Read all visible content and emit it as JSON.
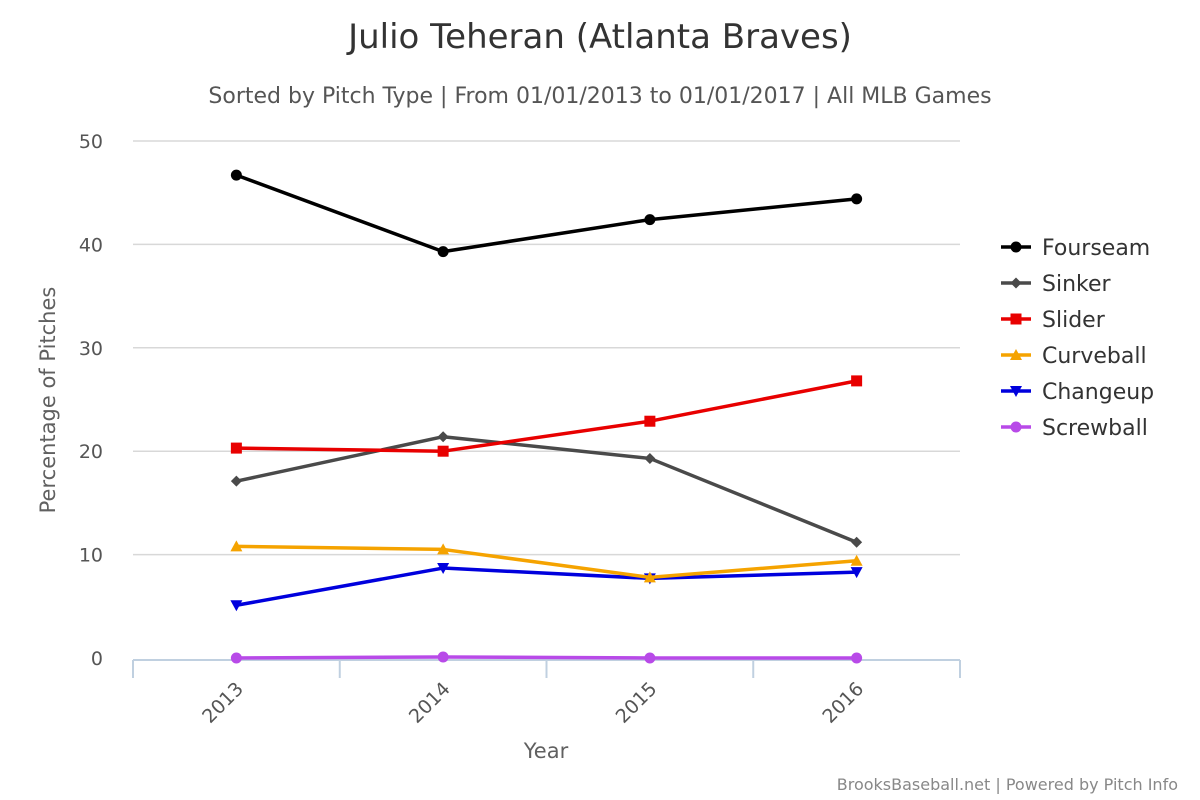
{
  "chart_data": {
    "type": "line",
    "title": "Julio Teheran (Atlanta Braves)",
    "subtitle": "Sorted by Pitch Type | From 01/01/2013 to 01/01/2017 | All MLB Games",
    "xlabel": "Year",
    "ylabel": "Percentage of Pitches",
    "categories": [
      "2013",
      "2014",
      "2015",
      "2016"
    ],
    "ylim": [
      0,
      50
    ],
    "yticks": [
      "0",
      "10",
      "20",
      "30",
      "40",
      "50"
    ],
    "grid": true,
    "legend_position": "right",
    "series": [
      {
        "name": "Fourseam",
        "color": "#000000",
        "marker": "circle",
        "values": [
          46.7,
          39.3,
          42.4,
          44.4
        ]
      },
      {
        "name": "Sinker",
        "color": "#4a4a4a",
        "marker": "diamond",
        "values": [
          17.1,
          21.4,
          19.3,
          11.2
        ]
      },
      {
        "name": "Slider",
        "color": "#e80000",
        "marker": "square",
        "values": [
          20.3,
          20.0,
          22.9,
          26.8
        ]
      },
      {
        "name": "Curveball",
        "color": "#f5a300",
        "marker": "triangle",
        "values": [
          10.8,
          10.5,
          7.8,
          9.4
        ]
      },
      {
        "name": "Changeup",
        "color": "#0000dd",
        "marker": "triangle-down",
        "values": [
          5.1,
          8.7,
          7.7,
          8.3
        ]
      },
      {
        "name": "Screwball",
        "color": "#b84ae8",
        "marker": "circle",
        "values": [
          0.0,
          0.1,
          0.0,
          0.0
        ]
      }
    ]
  },
  "credit": "BrooksBaseball.net | Powered by Pitch Info"
}
